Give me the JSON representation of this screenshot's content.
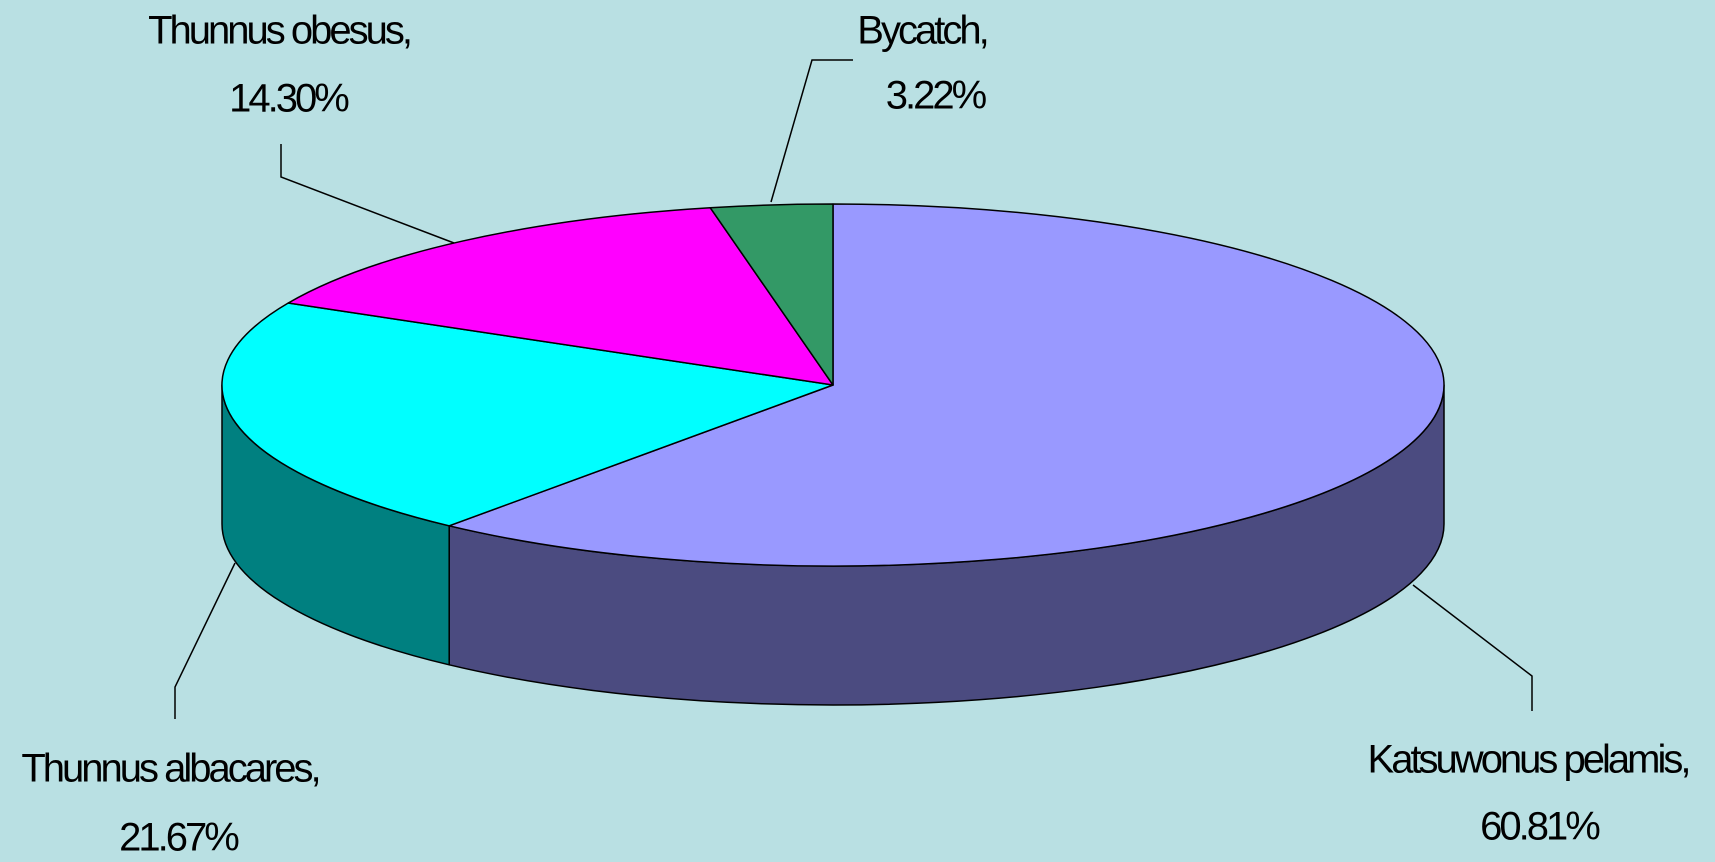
{
  "chart_data": {
    "type": "pie",
    "categories": [
      "Katsuwonus pelamis,",
      "Thunnus albacares,",
      "Thunnus obesus,",
      "Bycatch,"
    ],
    "values": [
      60.81,
      21.67,
      14.3,
      3.22
    ],
    "value_labels": [
      "60.81%",
      "21.67%",
      "14.30%",
      "3.22%"
    ],
    "colors": [
      "#9999ff",
      "#00ffff",
      "#ff00ff",
      "#339966"
    ],
    "side_colors": [
      "#4b4b80",
      "#008080",
      "#800080",
      "#1a4d33"
    ]
  }
}
